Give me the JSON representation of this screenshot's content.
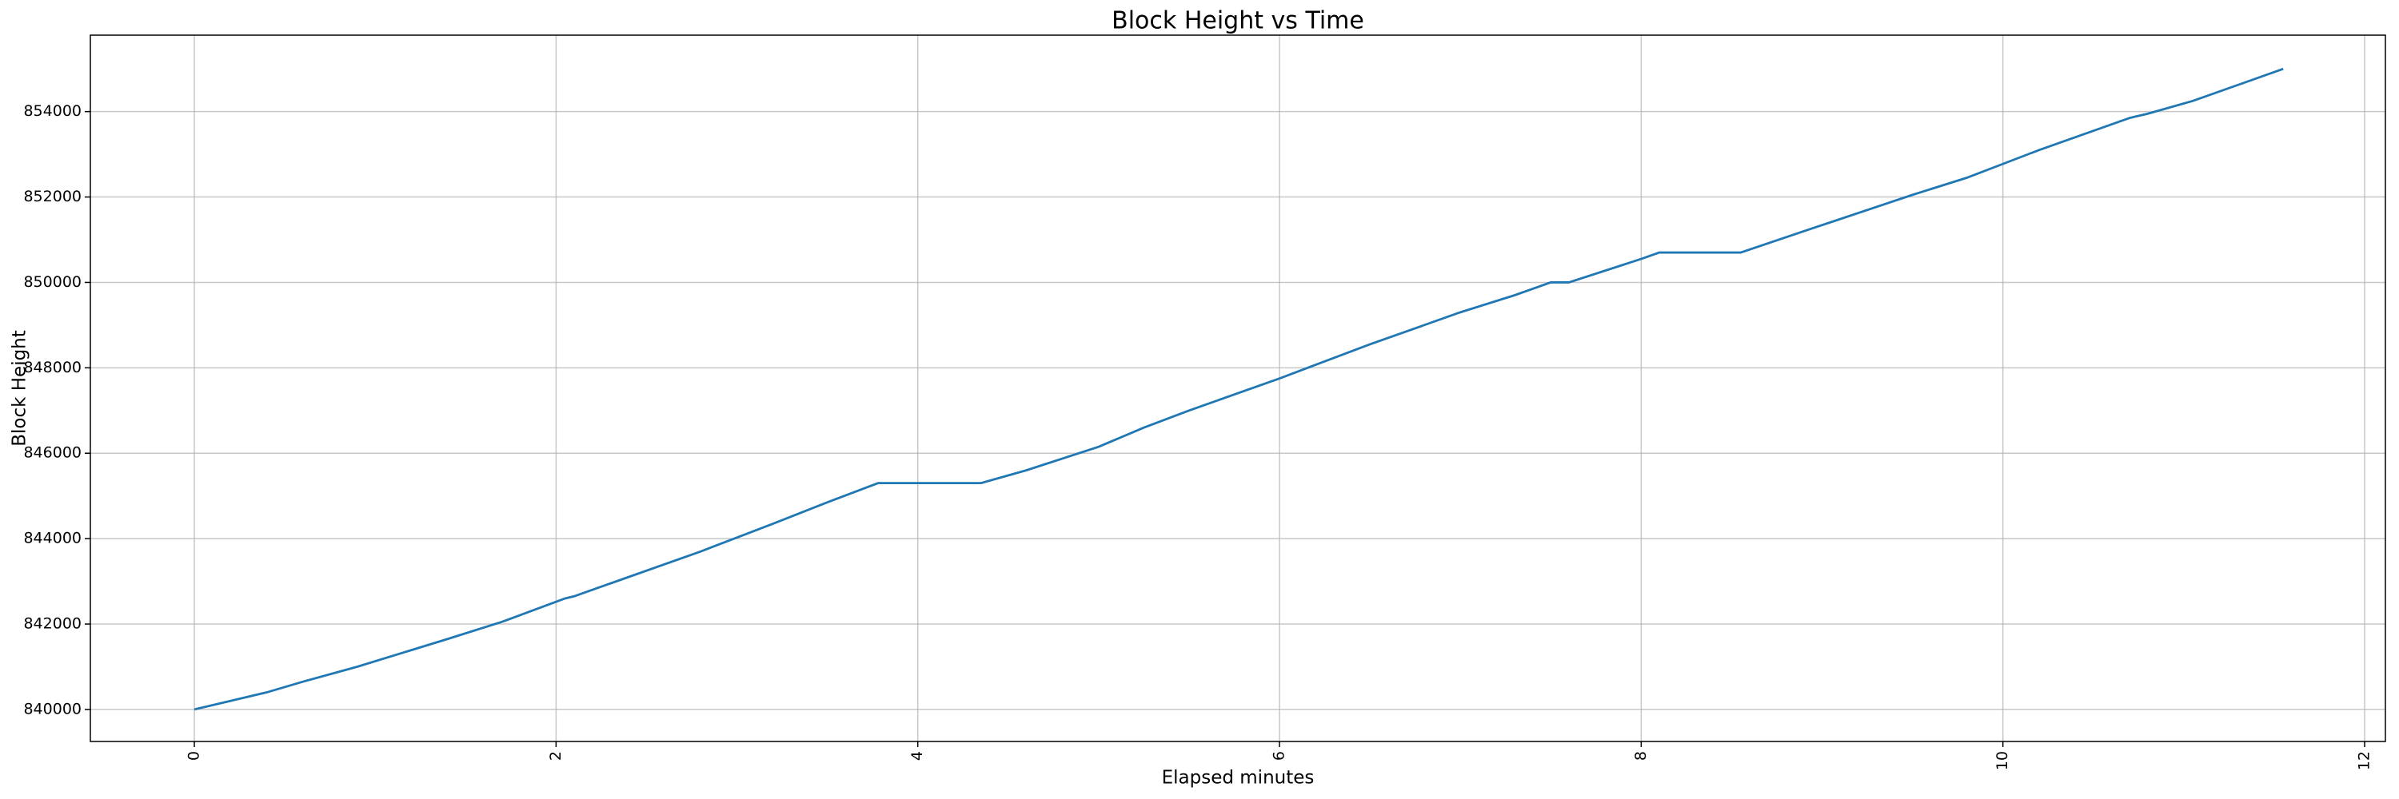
{
  "chart_data": {
    "type": "line",
    "title": "Block Height vs Time",
    "xlabel": "Elapsed minutes",
    "ylabel": "Block Height",
    "x": [
      0,
      0.4,
      0.6,
      0.9,
      1.4,
      1.7,
      2.05,
      2.1,
      2.3,
      2.8,
      3.2,
      3.5,
      3.78,
      4.35,
      4.6,
      5.0,
      5.25,
      5.5,
      6.0,
      6.5,
      7.0,
      7.3,
      7.5,
      7.6,
      8.0,
      8.1,
      8.55,
      8.9,
      9.5,
      9.8,
      10.2,
      10.7,
      10.8,
      11.05,
      11.55
    ],
    "series": [
      {
        "color": "#1f77b4",
        "values": [
          840000,
          840400,
          840650,
          841000,
          841650,
          842050,
          842600,
          842650,
          842950,
          843700,
          844350,
          844850,
          845300,
          845300,
          845600,
          846150,
          846600,
          847000,
          847750,
          848550,
          849300,
          849700,
          850000,
          850000,
          850550,
          850700,
          850700,
          851200,
          852050,
          852450,
          853100,
          853850,
          853950,
          854250,
          855000
        ]
      }
    ],
    "xlim": [
      -0.575,
      12.115
    ],
    "ylim": [
      839250,
      855790
    ],
    "xticks": [
      0,
      2,
      4,
      6,
      8,
      10,
      12
    ],
    "yticks": [
      840000,
      842000,
      844000,
      846000,
      848000,
      850000,
      852000,
      854000
    ],
    "grid": true
  }
}
